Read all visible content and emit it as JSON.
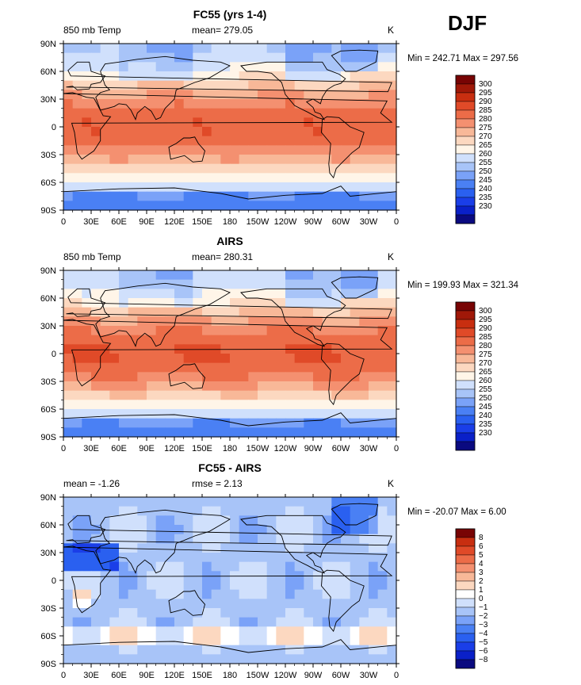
{
  "season": "DJF",
  "colormaps": {
    "temperature": [
      "#0a0a80",
      "#0a20c8",
      "#1a3ee8",
      "#2a60f0",
      "#4a80f4",
      "#7aa2f8",
      "#a8c4f8",
      "#d0e0fc",
      "#fff5e8",
      "#fcd8c0",
      "#f8b898",
      "#f49070",
      "#ec6c48",
      "#e04a28",
      "#c82e10",
      "#a01808",
      "#780404"
    ],
    "difference": [
      "#0a0a80",
      "#0a20c8",
      "#1a3ee8",
      "#2a60f0",
      "#4a80f4",
      "#7aa2f8",
      "#a8c4f8",
      "#d0e0fc",
      "#ffffff",
      "#fcd8c0",
      "#f8b898",
      "#f49070",
      "#ec6c48",
      "#e04a28",
      "#c82e10",
      "#780404"
    ]
  },
  "axes": {
    "x_ticks": [
      "0",
      "30E",
      "60E",
      "90E",
      "120E",
      "150E",
      "180",
      "150W",
      "120W",
      "90W",
      "60W",
      "30W",
      "0"
    ],
    "y_ticks": [
      "90N",
      "60N",
      "30N",
      "0",
      "30S",
      "60S",
      "90S"
    ]
  },
  "chart_data": [
    {
      "type": "heatmap",
      "title": "FC55 (yrs 1-4)",
      "left_label": "850 mb Temp",
      "center_label": "mean=  279.05",
      "right_label": "K",
      "stats": "Min = 242.71  Max = 297.56",
      "min": 242.71,
      "max": 297.56,
      "mean": 279.05,
      "colormap": "temperature",
      "levels": [
        230,
        235,
        240,
        245,
        250,
        255,
        260,
        265,
        270,
        275,
        280,
        285,
        290,
        295,
        300
      ],
      "colorbar_labels": [
        "300",
        "295",
        "290",
        "285",
        "280",
        "275",
        "270",
        "265",
        "260",
        "255",
        "250",
        "245",
        "240",
        "235",
        "230"
      ]
    },
    {
      "type": "heatmap",
      "title": "AIRS",
      "left_label": "850 mb Temp",
      "center_label": "mean=  280.31",
      "right_label": "K",
      "stats": "Min = 199.93  Max = 321.34",
      "min": 199.93,
      "max": 321.34,
      "mean": 280.31,
      "colormap": "temperature",
      "levels": [
        230,
        235,
        240,
        245,
        250,
        255,
        260,
        265,
        270,
        275,
        280,
        285,
        290,
        295,
        300
      ],
      "colorbar_labels": [
        "300",
        "295",
        "290",
        "285",
        "280",
        "275",
        "270",
        "265",
        "260",
        "255",
        "250",
        "245",
        "240",
        "235",
        "230"
      ]
    },
    {
      "type": "heatmap",
      "title": "FC55 - AIRS",
      "left_label": "mean =   -1.26",
      "center_label": "rmse =    2.13",
      "right_label": "K",
      "stats": "Min = -20.07  Max =    6.00",
      "min": -20.07,
      "max": 6.0,
      "mean": -1.26,
      "rmse": 2.13,
      "colormap": "difference",
      "levels": [
        -8,
        -6,
        -5,
        -4,
        -3,
        -2,
        -1,
        0,
        1,
        2,
        3,
        4,
        5,
        6,
        8
      ],
      "colorbar_labels": [
        "8",
        "6",
        "5",
        "4",
        "3",
        "2",
        "1",
        "0",
        "−1",
        "−2",
        "−3",
        "−4",
        "−5",
        "−6",
        "−8"
      ]
    }
  ]
}
